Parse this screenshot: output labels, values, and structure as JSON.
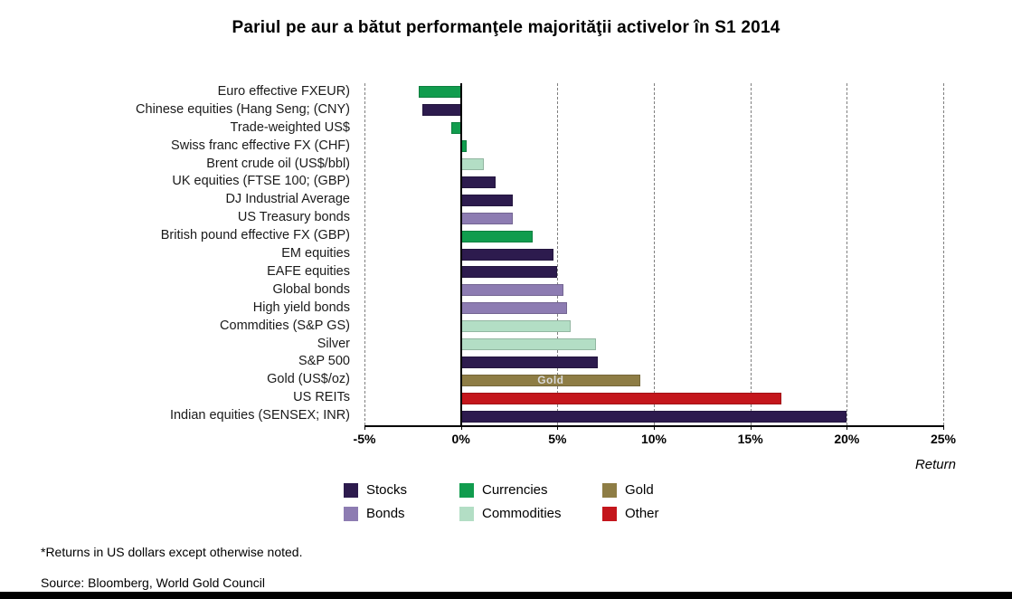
{
  "title": "Pariul pe aur a bătut performanţele majorităţii activelor în S1 2014",
  "footnotes": {
    "note": "*Returns in US dollars except otherwise noted.",
    "source": "Source: Bloomberg, World Gold Council"
  },
  "chart_data": {
    "type": "bar",
    "orientation": "horizontal",
    "title": "Pariul pe aur a bătut performanţele majorităţii activelor în S1 2014",
    "axis_label": "Return",
    "x_min": -5,
    "x_max": 25,
    "grid": "dashed-vertical",
    "ticks": [
      {
        "v": -5,
        "label": "-5%"
      },
      {
        "v": 0,
        "label": "0%"
      },
      {
        "v": 5,
        "label": "5%"
      },
      {
        "v": 10,
        "label": "10%"
      },
      {
        "v": 15,
        "label": "15%"
      },
      {
        "v": 20,
        "label": "20%"
      },
      {
        "v": 25,
        "label": "25%"
      }
    ],
    "group_colors": {
      "stocks": "#2d1b4e",
      "currencies": "#119c4e",
      "gold": "#8e7d45",
      "bonds": "#8d7cb2",
      "commodities": "#b3dec5",
      "other": "#c4161c"
    },
    "bars": [
      {
        "label": "Euro effective FXEUR)",
        "value": -2.2,
        "group": "currencies"
      },
      {
        "label": "Chinese equities (Hang Seng; (CNY)",
        "value": -2.0,
        "group": "stocks"
      },
      {
        "label": "Trade-weighted US$",
        "value": -0.5,
        "group": "currencies"
      },
      {
        "label": "Swiss franc effective FX (CHF)",
        "value": 0.3,
        "group": "currencies"
      },
      {
        "label": "Brent crude oil (US$/bbl)",
        "value": 1.2,
        "group": "commodities"
      },
      {
        "label": "UK equities (FTSE 100; (GBP)",
        "value": 1.8,
        "group": "stocks"
      },
      {
        "label": "DJ Industrial Average",
        "value": 2.7,
        "group": "stocks"
      },
      {
        "label": "US Treasury bonds",
        "value": 2.7,
        "group": "bonds"
      },
      {
        "label": "British pound effective FX (GBP)",
        "value": 3.7,
        "group": "currencies"
      },
      {
        "label": "EM equities",
        "value": 4.8,
        "group": "stocks"
      },
      {
        "label": "EAFE equities",
        "value": 5.0,
        "group": "stocks"
      },
      {
        "label": "Global bonds",
        "value": 5.3,
        "group": "bonds"
      },
      {
        "label": "High yield bonds",
        "value": 5.5,
        "group": "bonds"
      },
      {
        "label": "Commdities (S&P GS)",
        "value": 5.7,
        "group": "commodities"
      },
      {
        "label": "Silver",
        "value": 7.0,
        "group": "commodities"
      },
      {
        "label": "S&P 500",
        "value": 7.1,
        "group": "stocks"
      },
      {
        "label": "Gold (US$/oz)",
        "value": 9.3,
        "group": "gold",
        "bar_text": "Gold"
      },
      {
        "label": "US REITs",
        "value": 16.6,
        "group": "other"
      },
      {
        "label": "Indian equities (SENSEX; INR)",
        "value": 20.0,
        "group": "stocks"
      }
    ],
    "legend": [
      {
        "label": "Stocks",
        "group": "stocks"
      },
      {
        "label": "Currencies",
        "group": "currencies"
      },
      {
        "label": "Gold",
        "group": "gold"
      },
      {
        "label": "Bonds",
        "group": "bonds"
      },
      {
        "label": "Commodities",
        "group": "commodities"
      },
      {
        "label": "Other",
        "group": "other"
      }
    ],
    "legend_position": "bottom-center"
  }
}
